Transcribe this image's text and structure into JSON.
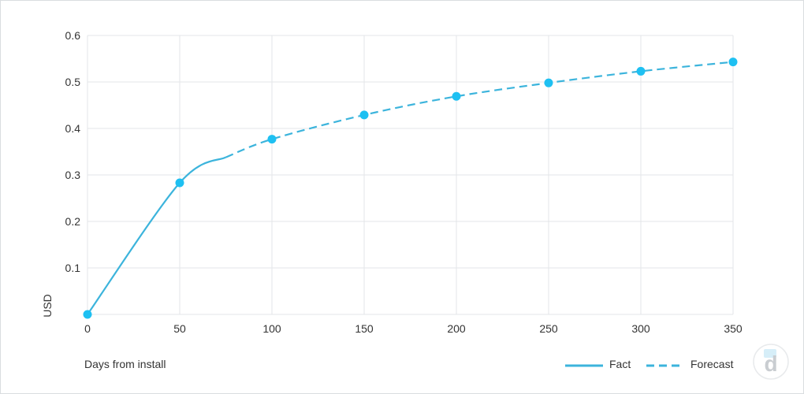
{
  "chart_data": {
    "type": "line",
    "xlabel": "Days from install",
    "ylabel": "USD",
    "xlim": [
      0,
      350
    ],
    "ylim": [
      0,
      0.6
    ],
    "x_ticks": [
      0,
      50,
      100,
      150,
      200,
      250,
      300,
      350
    ],
    "y_ticks": [
      0.1,
      0.2,
      0.3,
      0.4,
      0.5,
      0.6
    ],
    "x_tick_labels": [
      "0",
      "50",
      "100",
      "150",
      "200",
      "250",
      "300",
      "350"
    ],
    "y_tick_labels": [
      "0.1",
      "0.2",
      "0.3",
      "0.4",
      "0.5",
      "0.6"
    ],
    "grid": true,
    "legend_position": "bottom-right",
    "series": [
      {
        "name": "Fact",
        "style": "solid",
        "color": "#3cb4dc",
        "x": [
          0,
          50,
          75
        ],
        "y": [
          0,
          0.283,
          0.338
        ]
      },
      {
        "name": "Forecast",
        "style": "dashed",
        "color": "#3cb4dc",
        "x": [
          75,
          100,
          150,
          200,
          250,
          300,
          350
        ],
        "y": [
          0.338,
          0.377,
          0.429,
          0.469,
          0.498,
          0.523,
          0.543
        ]
      }
    ],
    "markers": {
      "color": "#1ec0f2",
      "x": [
        0,
        50,
        100,
        150,
        200,
        250,
        300,
        350
      ],
      "y": [
        0,
        0.283,
        0.377,
        0.429,
        0.469,
        0.498,
        0.523,
        0.543
      ]
    }
  },
  "legend": {
    "fact_label": "Fact",
    "forecast_label": "Forecast"
  },
  "logo": {
    "text": "d",
    "icon": "devtodev-logo-icon"
  }
}
